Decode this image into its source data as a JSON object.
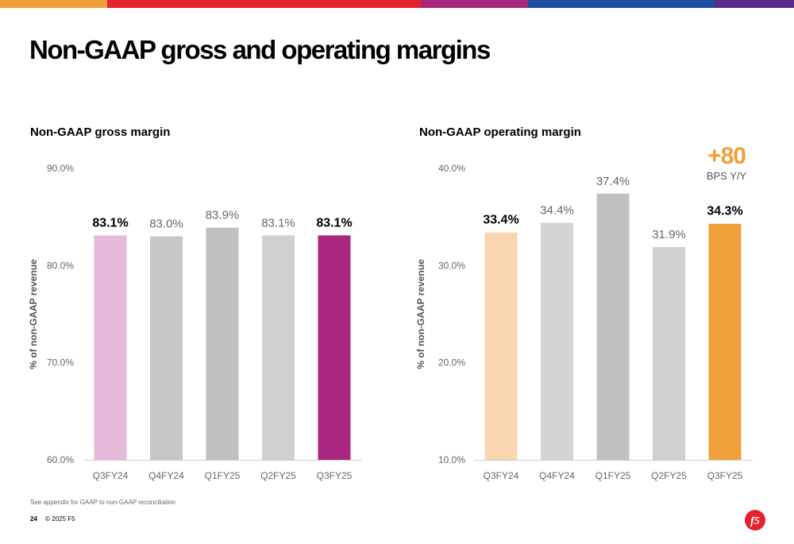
{
  "top_bar_colors": [
    "#f0a03a",
    "#e3232e",
    "#a8267e",
    "#1f4fa0",
    "#5a2d8c"
  ],
  "page": {
    "title": "Non-GAAP gross and operating margins",
    "footnote": "See appendix for GAAP to non-GAAP reconciliation",
    "page_number": "24",
    "copyright": "© 2025 F5",
    "logo_icon": "f5-logo-icon"
  },
  "callout": {
    "value": "+80",
    "label": "BPS Y/Y",
    "color": "#f0a03a"
  },
  "chart_data": [
    {
      "type": "bar",
      "title": "Non-GAAP gross margin",
      "ylabel": "% of non-GAAP revenue",
      "xlabel": "",
      "categories": [
        "Q3FY24",
        "Q4FY24",
        "Q1FY25",
        "Q2FY25",
        "Q3FY25"
      ],
      "values": [
        83.1,
        83.0,
        83.9,
        83.1,
        83.1
      ],
      "value_labels": [
        "83.1%",
        "83.0%",
        "83.9%",
        "83.1%",
        "83.1%"
      ],
      "highlight": [
        true,
        false,
        false,
        false,
        true
      ],
      "colors": [
        "#e5b9da",
        "#c6c6c6",
        "#c0c0c0",
        "#d0d0d0",
        "#a8267e"
      ],
      "ylim": [
        60,
        90
      ],
      "yticks": [
        60,
        70,
        80,
        90
      ],
      "ytick_labels": [
        "60.0%",
        "70.0%",
        "80.0%",
        "90.0%"
      ],
      "grid": false,
      "legend": "none"
    },
    {
      "type": "bar",
      "title": "Non-GAAP operating margin",
      "ylabel": "% of non-GAAP revenue",
      "xlabel": "",
      "categories": [
        "Q3FY24",
        "Q4FY24",
        "Q1FY25",
        "Q2FY25",
        "Q3FY25"
      ],
      "values": [
        33.4,
        34.4,
        37.4,
        31.9,
        34.3
      ],
      "value_labels": [
        "33.4%",
        "34.4%",
        "37.4%",
        "31.9%",
        "34.3%"
      ],
      "highlight": [
        true,
        false,
        false,
        false,
        true
      ],
      "colors": [
        "#f9d6b0",
        "#d4d4d4",
        "#c0c0c0",
        "#d0d0d0",
        "#f0a03a"
      ],
      "ylim": [
        10,
        40
      ],
      "yticks": [
        10,
        20,
        30,
        40
      ],
      "ytick_labels": [
        "10.0%",
        "20.0%",
        "30.0%",
        "40.0%"
      ],
      "grid": false,
      "legend": "none"
    }
  ]
}
